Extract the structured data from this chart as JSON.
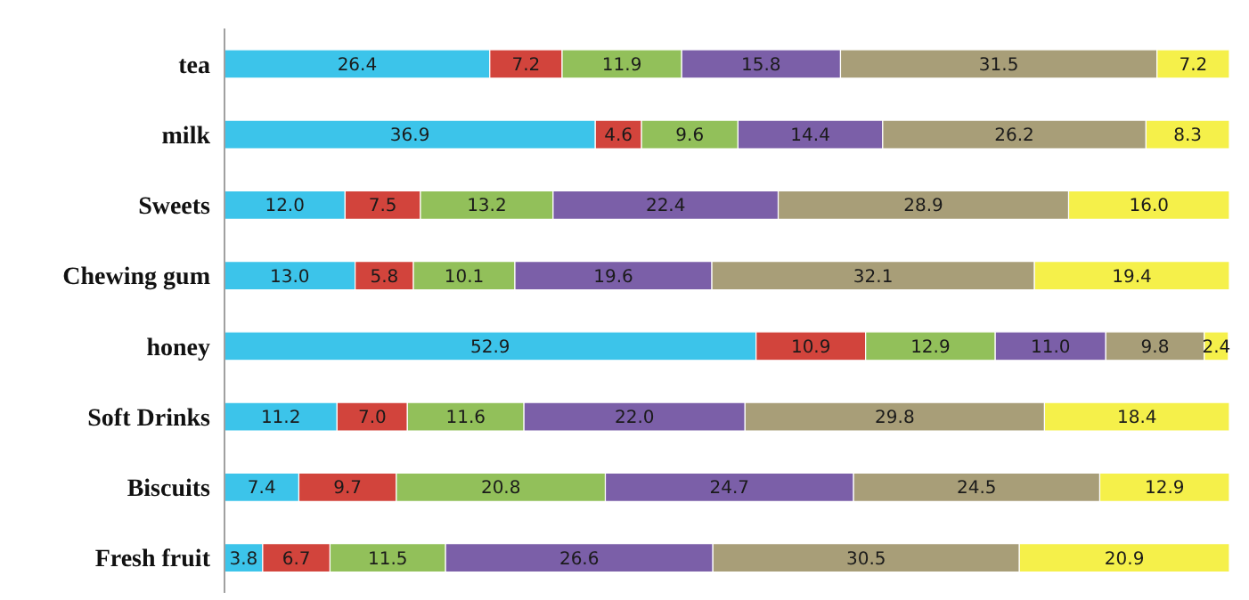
{
  "chart_data": {
    "type": "bar",
    "orientation": "horizontal",
    "stacked": true,
    "tick_labels": "y",
    "grid": false,
    "legend": false,
    "categories": [
      "tea",
      "milk",
      "Sweets",
      "Chewing gum",
      "honey",
      "Soft Drinks",
      "Biscuits",
      "Fresh fruit"
    ],
    "series": [
      {
        "color": "#3cc4ea",
        "values": [
          26.4,
          36.9,
          12.0,
          13.0,
          52.9,
          11.2,
          7.4,
          3.8
        ],
        "value_labels": [
          "26.4",
          "36.9",
          "12.0",
          "13.0",
          "52.9",
          "11.2",
          "7.4",
          "3.8"
        ]
      },
      {
        "color": "#d2443c",
        "values": [
          7.2,
          4.6,
          7.5,
          5.8,
          10.9,
          7.0,
          9.7,
          6.7
        ],
        "value_labels": [
          "7.2",
          "4.6",
          "7.5",
          "5.8",
          "10.9",
          "7.0",
          "9.7",
          "6.7"
        ]
      },
      {
        "color": "#92c05a",
        "values": [
          11.9,
          9.6,
          13.2,
          10.1,
          12.9,
          11.6,
          20.8,
          11.5
        ],
        "value_labels": [
          "11.9",
          "9.6",
          "13.2",
          "10.1",
          "12.9",
          "11.6",
          "20.8",
          "11.5"
        ]
      },
      {
        "color": "#7b5fa8",
        "values": [
          15.8,
          14.4,
          22.4,
          19.6,
          11.0,
          22.0,
          24.7,
          26.6
        ],
        "value_labels": [
          "15.8",
          "14.4",
          "22.4",
          "19.6",
          "11.0",
          "22.0",
          "24.7",
          "26.6"
        ]
      },
      {
        "color": "#a89e78",
        "values": [
          31.5,
          26.2,
          28.9,
          32.1,
          9.8,
          29.8,
          24.5,
          30.5
        ],
        "value_labels": [
          "31.5",
          "26.2",
          "28.9",
          "32.1",
          "9.8",
          "29.8",
          "24.5",
          "30.5"
        ]
      },
      {
        "color": "#f5f04a",
        "values": [
          7.2,
          8.3,
          16.0,
          19.4,
          2.4,
          18.4,
          12.9,
          20.9
        ],
        "value_labels": [
          "7.2",
          "8.3",
          "16.0",
          "19.4",
          "2.4",
          "18.4",
          "12.9",
          "20.9"
        ]
      }
    ]
  }
}
